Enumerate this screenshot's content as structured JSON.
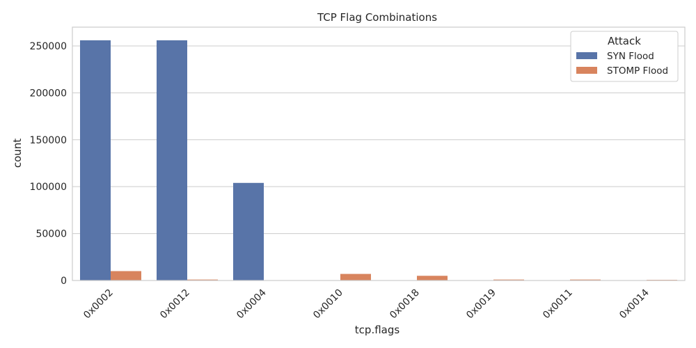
{
  "chart_data": {
    "type": "bar",
    "title": "TCP Flag Combinations",
    "xlabel": "tcp.flags",
    "ylabel": "count",
    "categories": [
      "0x0002",
      "0x0012",
      "0x0004",
      "0x0010",
      "0x0018",
      "0x0019",
      "0x0011",
      "0x0014"
    ],
    "series": [
      {
        "name": "SYN Flood",
        "color": "#5874a8",
        "values": [
          256000,
          256000,
          104000,
          0,
          0,
          0,
          0,
          0
        ]
      },
      {
        "name": "STOMP Flood",
        "color": "#d8845e",
        "values": [
          10000,
          1000,
          0,
          7000,
          5000,
          1000,
          1000,
          700
        ]
      }
    ],
    "ylim": [
      0,
      270000
    ],
    "yticks": [
      0,
      50000,
      100000,
      150000,
      200000,
      250000
    ],
    "ytick_labels": [
      "0",
      "50000",
      "100000",
      "150000",
      "200000",
      "250000"
    ],
    "grid": true,
    "legend": {
      "title": "Attack",
      "placement": "top-right"
    }
  }
}
